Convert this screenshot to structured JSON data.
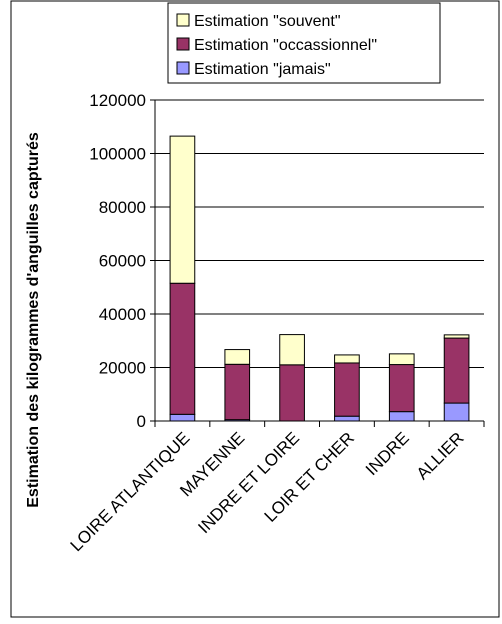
{
  "chart_data": {
    "type": "bar",
    "stacked": true,
    "title": "",
    "xlabel": "",
    "ylabel": "Estimation des kilogrammes d'anguilles capturés",
    "ylim": [
      0,
      120000
    ],
    "yticks": [
      0,
      20000,
      40000,
      60000,
      80000,
      100000,
      120000
    ],
    "grid": true,
    "legend_position": "top",
    "categories": [
      "LOIRE ATLANTIQUE",
      "MAYENNE",
      "INDRE ET LOIRE",
      "LOIR ET CHER",
      "INDRE",
      "ALLIER"
    ],
    "series": [
      {
        "name": "Estimation \"jamais\"",
        "color": "#9999ff",
        "values": [
          2500,
          500,
          0,
          1800,
          3500,
          6700
        ]
      },
      {
        "name": "Estimation \"occassionnel\"",
        "color": "#993366",
        "values": [
          49000,
          20700,
          21000,
          19900,
          17600,
          24300
        ]
      },
      {
        "name": "Estimation \"souvent\"",
        "color": "#ffffcc",
        "values": [
          55000,
          5500,
          11300,
          3000,
          4000,
          1200
        ]
      }
    ],
    "legend_order": [
      2,
      1,
      0
    ]
  }
}
